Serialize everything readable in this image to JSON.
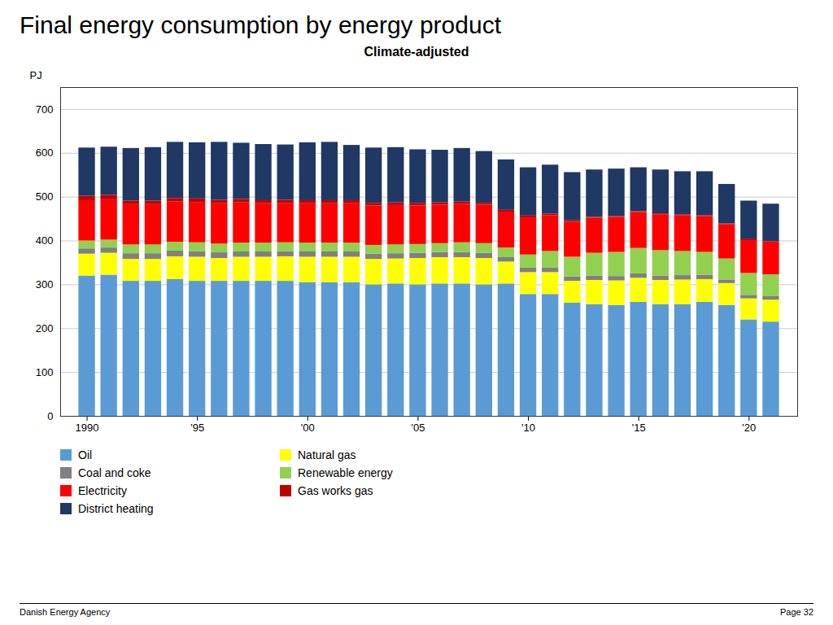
{
  "chart_data": {
    "type": "bar",
    "stacked": true,
    "title": "Final energy consumption by energy product",
    "subtitle": "Climate-adjusted",
    "y_label": "PJ",
    "x": [
      1990,
      1991,
      1992,
      1993,
      1994,
      1995,
      1996,
      1997,
      1998,
      1999,
      2000,
      2001,
      2002,
      2003,
      2004,
      2005,
      2006,
      2007,
      2008,
      2009,
      2010,
      2011,
      2012,
      2013,
      2014,
      2015,
      2016,
      2017,
      2018,
      2019,
      2020,
      2021
    ],
    "series": [
      {
        "name": "Oil",
        "color": "#5B9BD5",
        "values": [
          320,
          322,
          308,
          308,
          312,
          308,
          308,
          308,
          308,
          308,
          305,
          305,
          305,
          300,
          302,
          300,
          302,
          302,
          300,
          302,
          278,
          278,
          258,
          255,
          253,
          260,
          255,
          255,
          260,
          253,
          220,
          215
        ]
      },
      {
        "name": "Natural gas",
        "color": "#FFFF00",
        "values": [
          50,
          50,
          50,
          50,
          52,
          55,
          52,
          55,
          55,
          56,
          58,
          58,
          58,
          58,
          57,
          60,
          60,
          60,
          60,
          50,
          50,
          50,
          50,
          55,
          56,
          55,
          55,
          56,
          52,
          50,
          48,
          50
        ]
      },
      {
        "name": "Coal and coke",
        "color": "#808080",
        "values": [
          12,
          12,
          13,
          13,
          13,
          13,
          13,
          12,
          12,
          12,
          12,
          12,
          12,
          12,
          12,
          12,
          12,
          12,
          12,
          10,
          10,
          10,
          10,
          10,
          10,
          10,
          10,
          10,
          10,
          8,
          8,
          8
        ]
      },
      {
        "name": "Renewable energy",
        "color": "#92D050",
        "values": [
          18,
          18,
          20,
          20,
          20,
          20,
          20,
          20,
          20,
          20,
          20,
          20,
          20,
          20,
          20,
          20,
          20,
          22,
          22,
          22,
          30,
          38,
          45,
          52,
          55,
          58,
          58,
          55,
          52,
          48,
          50,
          50
        ]
      },
      {
        "name": "Electricity",
        "color": "#FF0000",
        "values": [
          92,
          92,
          92,
          92,
          92,
          92,
          92,
          92,
          90,
          90,
          90,
          90,
          90,
          90,
          90,
          88,
          88,
          88,
          88,
          82,
          85,
          82,
          80,
          80,
          80,
          82,
          82,
          82,
          82,
          78,
          75,
          75
        ]
      },
      {
        "name": "Gas works gas",
        "color": "#C00000",
        "values": [
          10,
          10,
          8,
          8,
          8,
          8,
          8,
          8,
          7,
          7,
          7,
          7,
          7,
          6,
          6,
          6,
          5,
          5,
          4,
          4,
          4,
          3,
          3,
          2,
          2,
          2,
          2,
          2,
          2,
          2,
          2,
          1
        ]
      },
      {
        "name": "District heating",
        "color": "#1F3864",
        "values": [
          110,
          110,
          120,
          122,
          128,
          128,
          132,
          128,
          128,
          126,
          132,
          133,
          126,
          126,
          126,
          122,
          120,
          122,
          118,
          115,
          110,
          112,
          110,
          108,
          108,
          100,
          100,
          98,
          100,
          90,
          88,
          85
        ]
      }
    ],
    "xlim": [
      1988.8,
      2022.2
    ],
    "xticks": [
      {
        "value": 1990,
        "label": "1990"
      },
      {
        "value": 1995,
        "label": "'95"
      },
      {
        "value": 2000,
        "label": "'00"
      },
      {
        "value": 2005,
        "label": "'05"
      },
      {
        "value": 2010,
        "label": "'10"
      },
      {
        "value": 2015,
        "label": "'15"
      },
      {
        "value": 2020,
        "label": "'20"
      }
    ],
    "ylim": [
      0,
      750
    ],
    "yticks": [
      0,
      100,
      200,
      300,
      400,
      500,
      600,
      700
    ],
    "grid": true,
    "legend": "bottom",
    "annotations": [
      "Danish Energy Agency",
      "Page 32"
    ]
  }
}
